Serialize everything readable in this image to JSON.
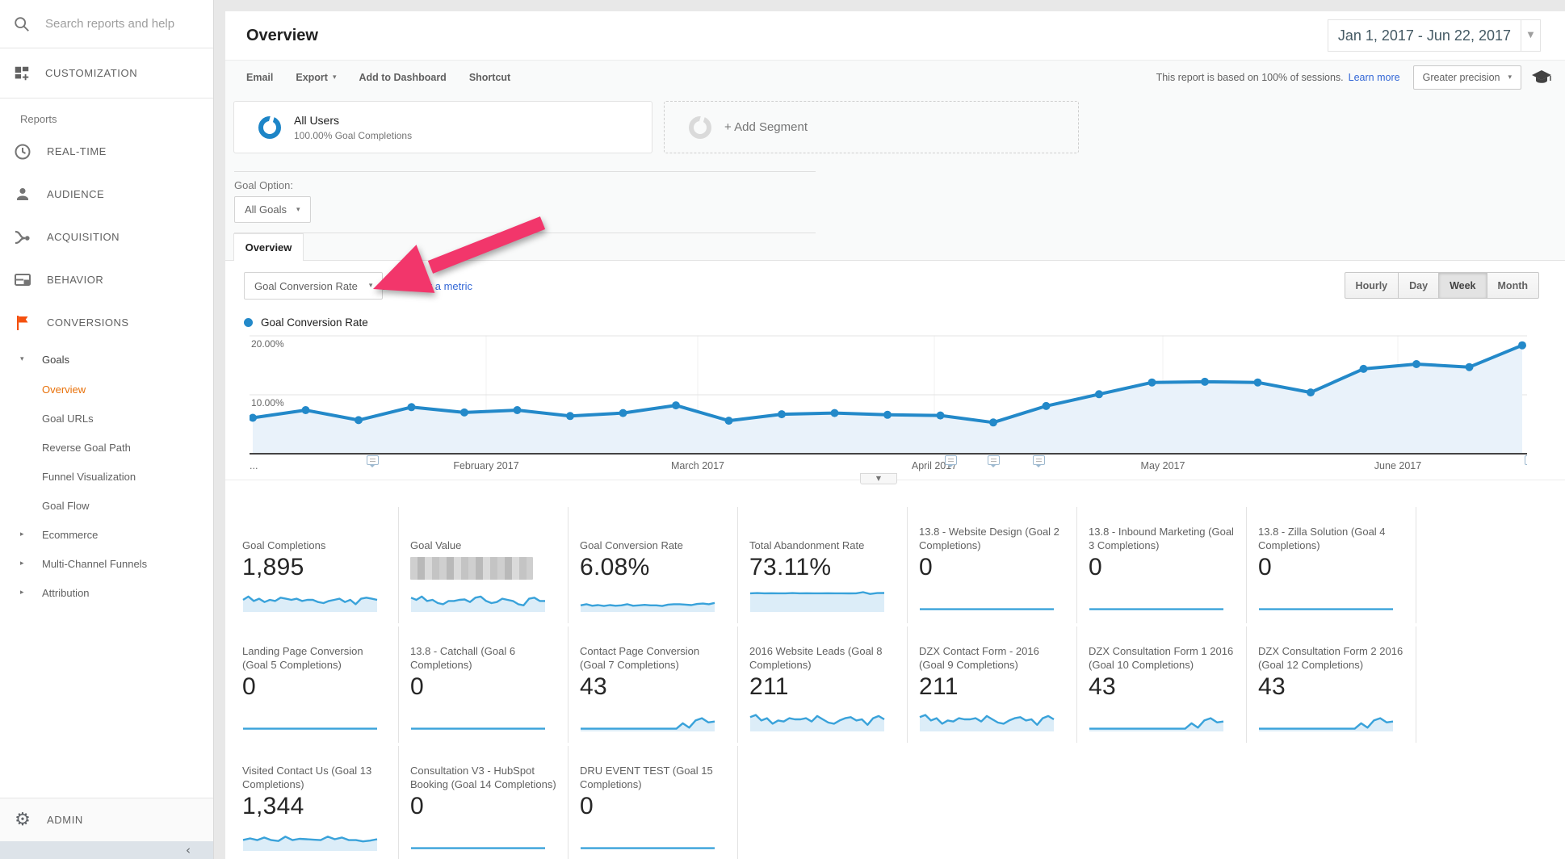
{
  "colors": {
    "brand_orange": "#e8710a",
    "flag_orange": "#f4500e",
    "link_blue": "#3367d6",
    "chart_blue": "#2389c9",
    "chart_fill": "#e9f2fa",
    "arrow_pink": "#f2366b"
  },
  "sidebar": {
    "search_placeholder": "Search reports and help",
    "customization": "CUSTOMIZATION",
    "reports_label": "Reports",
    "nav": [
      {
        "label": "REAL-TIME",
        "icon": "clock-icon"
      },
      {
        "label": "AUDIENCE",
        "icon": "person-icon"
      },
      {
        "label": "ACQUISITION",
        "icon": "acquisition-icon"
      },
      {
        "label": "BEHAVIOR",
        "icon": "behavior-icon"
      },
      {
        "label": "CONVERSIONS",
        "icon": "flag-icon"
      }
    ],
    "goals_section": {
      "parent": "Goals",
      "items": [
        "Overview",
        "Goal URLs",
        "Reverse Goal Path",
        "Funnel Visualization",
        "Goal Flow"
      ],
      "active": "Overview"
    },
    "collapsed_items": [
      "Ecommerce",
      "Multi-Channel Funnels",
      "Attribution"
    ],
    "admin_label": "ADMIN"
  },
  "header": {
    "title": "Overview",
    "date_range": "Jan 1, 2017 - Jun 22, 2017"
  },
  "toolbar": {
    "actions": [
      {
        "label": "Email",
        "has_menu": false
      },
      {
        "label": "Export",
        "has_menu": true
      },
      {
        "label": "Add to Dashboard",
        "has_menu": false
      },
      {
        "label": "Shortcut",
        "has_menu": false
      }
    ],
    "report_basis": "This report is based on 100% of sessions.",
    "learn_more": "Learn more",
    "precision": "Greater precision"
  },
  "segments": {
    "all_users": {
      "name": "All Users",
      "detail": "100.00% Goal Completions"
    },
    "add_segment": "+ Add Segment"
  },
  "goal_option": {
    "label": "Goal Option:",
    "value": "All Goals"
  },
  "tabs": {
    "overview": "Overview"
  },
  "metric_picker": {
    "metric": "Goal Conversion Rate",
    "vs": "VS.",
    "select_metric": "Select a metric",
    "granularity": [
      "Hourly",
      "Day",
      "Week",
      "Month"
    ],
    "granularity_active": "Week"
  },
  "legend": {
    "label": "Goal Conversion Rate"
  },
  "chart_data": {
    "type": "line",
    "title": "Goal Conversion Rate",
    "x_unit": "week",
    "x_start_label": "...",
    "y_ticks": [
      "20.00%",
      "10.00%"
    ],
    "ylim": [
      0,
      21
    ],
    "grid": true,
    "series": [
      {
        "name": "Goal Conversion Rate",
        "color": "#2389c9",
        "values": [
          6.1,
          7.4,
          5.7,
          7.9,
          7.0,
          7.4,
          6.4,
          6.9,
          8.2,
          5.6,
          6.7,
          6.9,
          6.6,
          6.5,
          5.3,
          8.1,
          10.1,
          12.1,
          12.2,
          12.1,
          10.4,
          14.4,
          15.2,
          14.7,
          18.4
        ]
      }
    ],
    "month_labels": [
      {
        "label": "February 2017",
        "pos": 0.185
      },
      {
        "label": "March 2017",
        "pos": 0.351
      },
      {
        "label": "April 2017",
        "pos": 0.536
      },
      {
        "label": "May 2017",
        "pos": 0.715
      },
      {
        "label": "June 2017",
        "pos": 0.899
      }
    ],
    "annotation_marker_positions": [
      0.097,
      0.549,
      0.583,
      0.618,
      1.003
    ]
  },
  "sparks": {
    "completions": [
      5,
      6.5,
      4.5,
      5.5,
      4,
      5,
      4.5,
      6,
      5.5,
      5,
      5.5,
      4.5,
      5,
      5,
      4,
      3.5,
      4.5,
      5,
      5.5,
      4,
      5,
      3,
      5.5,
      6,
      5.5,
      5
    ],
    "value": [
      6,
      5,
      6.5,
      4.5,
      5,
      3.5,
      3,
      4.5,
      4.5,
      5,
      5.2,
      4,
      6,
      6.5,
      4.5,
      3.5,
      4,
      5.5,
      5,
      4.5,
      3,
      2.5,
      5.5,
      6,
      4.5,
      4.5
    ],
    "cr": [
      2.5,
      3,
      2.3,
      2.6,
      2.2,
      2.6,
      2.3,
      2.5,
      3,
      2.3,
      2.5,
      2.7,
      2.5,
      2.5,
      2.2,
      2.8,
      3,
      3,
      2.8,
      2.6,
      3.1,
      3.3,
      3,
      3.6
    ],
    "aband": [
      8,
      8.1,
      8,
      8.05,
      8,
      8,
      8.1,
      8,
      8.05,
      8,
      8,
      8.05,
      8,
      8,
      7.95,
      8,
      8.5,
      7.7,
      8.1,
      8.15
    ],
    "flat": [
      0.7,
      0.7,
      0.7,
      0.7,
      0.7,
      0.7,
      0.7,
      0.7,
      0.7,
      0.7,
      0.7,
      0.7,
      0.7,
      0.7,
      0.7,
      0.7,
      0.7,
      0.7,
      0.7,
      0.7,
      0.7,
      0.7
    ],
    "bump": [
      0.7,
      0.7,
      0.7,
      0.7,
      0.7,
      0.7,
      0.7,
      0.7,
      0.7,
      0.7,
      0.7,
      0.7,
      0.7,
      0.7,
      0.7,
      0.7,
      3.2,
      1.2,
      4.5,
      5.5,
      3.6,
      4
    ],
    "g211": [
      6,
      7,
      4.5,
      5.5,
      3,
      4.5,
      4,
      5.5,
      5,
      5,
      5.5,
      4,
      6.5,
      5,
      3.5,
      3,
      4.5,
      5.5,
      6,
      4.5,
      5,
      2.5,
      5.5,
      6.5,
      5
    ],
    "g1344": [
      4.5,
      5.2,
      4.4,
      5.6,
      4.4,
      4,
      6,
      4.4,
      5,
      4.8,
      4.6,
      4.4,
      6,
      4.8,
      5.6,
      4.4,
      4.4,
      3.8,
      4.2,
      4.8
    ]
  },
  "cards": [
    {
      "title": "Goal Completions",
      "value": "1,895",
      "redacted": false,
      "spark": "completions"
    },
    {
      "title": "Goal Value",
      "value": "",
      "redacted": true,
      "spark": "value"
    },
    {
      "title": "Goal Conversion Rate",
      "value": "6.08%",
      "redacted": false,
      "spark": "cr"
    },
    {
      "title": "Total Abandonment Rate",
      "value": "73.11%",
      "redacted": false,
      "spark": "aband"
    },
    {
      "title": "13.8 - Website Design (Goal 2 Completions)",
      "value": "0",
      "redacted": false,
      "spark": "flat"
    },
    {
      "title": "13.8 - Inbound Marketing (Goal 3 Completions)",
      "value": "0",
      "redacted": false,
      "spark": "flat"
    },
    {
      "title": "13.8 - Zilla Solution (Goal 4 Completions)",
      "value": "0",
      "redacted": false,
      "spark": "flat"
    },
    {
      "title": "Landing Page Conversion (Goal 5 Completions)",
      "value": "0",
      "redacted": false,
      "spark": "flat"
    },
    {
      "title": "13.8 - Catchall (Goal 6 Completions)",
      "value": "0",
      "redacted": false,
      "spark": "flat"
    },
    {
      "title": "Contact Page Conversion (Goal 7 Completions)",
      "value": "43",
      "redacted": false,
      "spark": "bump"
    },
    {
      "title": "2016 Website Leads (Goal 8 Completions)",
      "value": "211",
      "redacted": false,
      "spark": "g211"
    },
    {
      "title": "DZX Contact Form - 2016 (Goal 9 Completions)",
      "value": "211",
      "redacted": false,
      "spark": "g211"
    },
    {
      "title": "DZX Consultation Form 1 2016 (Goal 10 Completions)",
      "value": "43",
      "redacted": false,
      "spark": "bump"
    },
    {
      "title": "DZX Consultation Form 2 2016 (Goal 12 Completions)",
      "value": "43",
      "redacted": false,
      "spark": "bump"
    },
    {
      "title": "Visited Contact Us (Goal 13 Completions)",
      "value": "1,344",
      "redacted": false,
      "spark": "g1344"
    },
    {
      "title": "Consultation V3 - HubSpot Booking (Goal 14 Completions)",
      "value": "0",
      "redacted": false,
      "spark": "flat"
    },
    {
      "title": "DRU EVENT TEST (Goal 15 Completions)",
      "value": "0",
      "redacted": false,
      "spark": "flat"
    }
  ],
  "overlay": {
    "arrow_color": "#f2366b"
  }
}
